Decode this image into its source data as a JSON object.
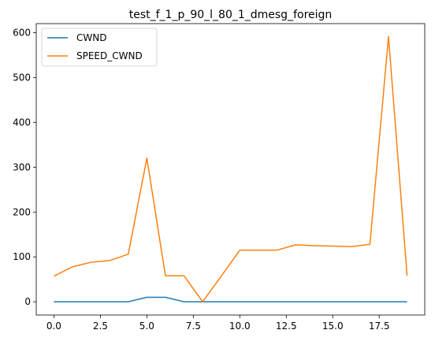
{
  "chart_data": {
    "type": "line",
    "title": "test_f_1_p_90_l_80_1_dmesg_foreign",
    "xlabel": "",
    "ylabel": "",
    "x": [
      0,
      1,
      2,
      3,
      4,
      5,
      6,
      7,
      8,
      9,
      10,
      11,
      12,
      13,
      14,
      15,
      16,
      17,
      18,
      19
    ],
    "xlim": [
      -0.95,
      19.95
    ],
    "ylim": [
      -29.5,
      620
    ],
    "xticks": [
      0.0,
      2.5,
      5.0,
      7.5,
      10.0,
      12.5,
      15.0,
      17.5
    ],
    "xtick_labels": [
      "0.0",
      "2.5",
      "5.0",
      "7.5",
      "10.0",
      "12.5",
      "15.0",
      "17.5"
    ],
    "yticks": [
      0,
      100,
      200,
      300,
      400,
      500,
      600
    ],
    "ytick_labels": [
      "0",
      "100",
      "200",
      "300",
      "400",
      "500",
      "600"
    ],
    "grid": false,
    "legend": "top-left",
    "series": [
      {
        "name": "CWND",
        "color": "#1f77b4",
        "values": [
          0,
          0,
          0,
          0,
          0,
          10,
          10,
          0,
          0,
          0,
          0,
          0,
          0,
          0,
          0,
          0,
          0,
          0,
          0,
          0
        ]
      },
      {
        "name": "SPEED_CWND",
        "color": "#ff7f0e",
        "values": [
          57,
          78,
          88,
          92,
          106,
          320,
          58,
          58,
          0,
          57,
          115,
          115,
          115,
          127,
          125,
          124,
          123,
          128,
          591,
          58
        ]
      }
    ]
  }
}
